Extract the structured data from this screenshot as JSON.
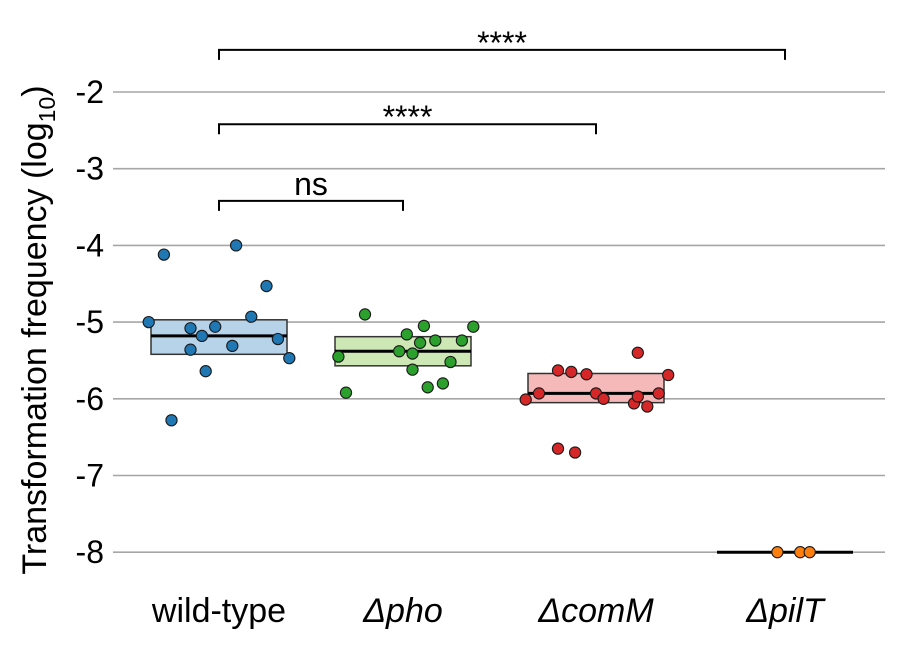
{
  "chart_data": {
    "type": "scatter",
    "subtype": "jitter-strip-with-summary-boxes",
    "title": "",
    "xlabel": "",
    "ylabel": "Transformation frequency (log",
    "ylabel_subscript": "10",
    "ylabel_close": ")",
    "ylim": [
      -8.4,
      -1.1
    ],
    "yticks": [
      -2,
      -3,
      -4,
      -5,
      -6,
      -7,
      -8
    ],
    "ytick_labels": [
      "-2",
      "-3",
      "-4",
      "-5",
      "-6",
      "-7",
      "-8"
    ],
    "grid": true,
    "categories": [
      "wild-type",
      "Δpho",
      "ΔcomM",
      "ΔpilT"
    ],
    "category_italic": [
      false,
      true,
      true,
      true
    ],
    "groups": [
      {
        "name": "wild-type",
        "color": "#1f77b4",
        "box_color": "#b7d3e9",
        "box_low": -5.42,
        "box_high": -4.97,
        "median": -5.18,
        "points": [
          {
            "x": -0.37,
            "y": -5.0
          },
          {
            "x": -0.29,
            "y": -4.12
          },
          {
            "x": -0.25,
            "y": -6.28
          },
          {
            "x": -0.15,
            "y": -5.08
          },
          {
            "x": -0.15,
            "y": -5.36
          },
          {
            "x": -0.09,
            "y": -5.18
          },
          {
            "x": -0.07,
            "y": -5.64
          },
          {
            "x": -0.02,
            "y": -5.06
          },
          {
            "x": 0.09,
            "y": -4.0
          },
          {
            "x": 0.07,
            "y": -5.31
          },
          {
            "x": 0.17,
            "y": -4.93
          },
          {
            "x": 0.25,
            "y": -4.53
          },
          {
            "x": 0.31,
            "y": -5.22
          },
          {
            "x": 0.37,
            "y": -5.47
          }
        ]
      },
      {
        "name": "Δpho",
        "color": "#2ca02c",
        "box_color": "#cde7b5",
        "box_low": -5.57,
        "box_high": -5.19,
        "median": -5.38,
        "points": [
          {
            "x": -0.34,
            "y": -5.45
          },
          {
            "x": -0.3,
            "y": -5.92
          },
          {
            "x": -0.2,
            "y": -4.9
          },
          {
            "x": -0.02,
            "y": -5.38
          },
          {
            "x": 0.02,
            "y": -5.16
          },
          {
            "x": 0.05,
            "y": -5.41
          },
          {
            "x": 0.05,
            "y": -5.62
          },
          {
            "x": 0.09,
            "y": -5.27
          },
          {
            "x": 0.11,
            "y": -5.05
          },
          {
            "x": 0.13,
            "y": -5.85
          },
          {
            "x": 0.17,
            "y": -5.24
          },
          {
            "x": 0.21,
            "y": -5.8
          },
          {
            "x": 0.25,
            "y": -5.52
          },
          {
            "x": 0.31,
            "y": -5.24
          },
          {
            "x": 0.37,
            "y": -5.06
          }
        ]
      },
      {
        "name": "ΔcomM",
        "color": "#d62728",
        "box_color": "#f5b9b9",
        "box_low": -6.05,
        "box_high": -5.67,
        "median": -5.93,
        "points": [
          {
            "x": -0.37,
            "y": -6.01
          },
          {
            "x": -0.3,
            "y": -5.93
          },
          {
            "x": -0.2,
            "y": -6.65
          },
          {
            "x": -0.2,
            "y": -5.63
          },
          {
            "x": -0.13,
            "y": -5.65
          },
          {
            "x": -0.11,
            "y": -6.7
          },
          {
            "x": -0.05,
            "y": -5.68
          },
          {
            "x": 0.0,
            "y": -5.93
          },
          {
            "x": 0.04,
            "y": -6.0
          },
          {
            "x": 0.22,
            "y": -5.4
          },
          {
            "x": 0.2,
            "y": -6.06
          },
          {
            "x": 0.22,
            "y": -5.97
          },
          {
            "x": 0.27,
            "y": -6.1
          },
          {
            "x": 0.33,
            "y": -5.93
          },
          {
            "x": 0.38,
            "y": -5.69
          }
        ]
      },
      {
        "name": "ΔpilT",
        "color": "#ff7f0e",
        "box_color": "#ffd2a6",
        "box_low": -8.0,
        "box_high": -8.0,
        "median": -8.0,
        "points": [
          {
            "x": -0.04,
            "y": -8.0
          },
          {
            "x": 0.08,
            "y": -8.0
          },
          {
            "x": 0.13,
            "y": -8.0
          }
        ]
      }
    ],
    "annotations": [
      {
        "from": "wild-type",
        "to": "Δpho",
        "label": "ns",
        "y": -3.42
      },
      {
        "from": "wild-type",
        "to": "ΔcomM",
        "label": "****",
        "y": -2.42
      },
      {
        "from": "wild-type",
        "to": "ΔpilT",
        "label": "****",
        "y": -1.45
      }
    ]
  }
}
